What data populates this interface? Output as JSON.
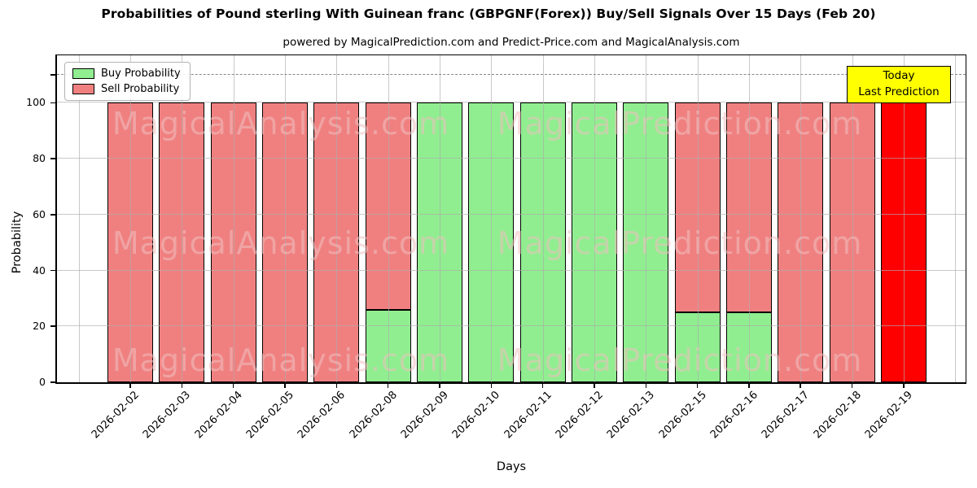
{
  "figure": {
    "title": "Probabilities of Pound sterling With Guinean franc (GBPGNF(Forex)) Buy/Sell Signals Over 15 Days (Feb 20)",
    "subtitle": "powered by MagicalPrediction.com and Predict-Price.com and MagicalAnalysis.com"
  },
  "legend": {
    "items": [
      {
        "label": "Buy Probability",
        "color": "#90ee90"
      },
      {
        "label": "Sell Probability",
        "color": "#f08080"
      }
    ]
  },
  "annotation_box": {
    "line1": "Today",
    "line2": "Last Prediction",
    "bg_color": "#ffff00",
    "border_color": "#000000"
  },
  "watermarks": {
    "left_text": "MagicalAnalysis.com",
    "right_text": "MagicalPrediction.com"
  },
  "axes": {
    "ylabel": "Probability",
    "xlabel": "Days",
    "ytick_labels": [
      "0",
      "20",
      "40",
      "60",
      "80",
      "100"
    ]
  },
  "chart_data": {
    "type": "bar",
    "stacked": true,
    "title": "Probabilities of Pound sterling With Guinean franc (GBPGNF(Forex)) Buy/Sell Signals Over 15 Days (Feb 20)",
    "xlabel": "Days",
    "ylabel": "Probability",
    "categories": [
      "2026-02-02",
      "2026-02-03",
      "2026-02-04",
      "2026-02-05",
      "2026-02-06",
      "2026-02-08",
      "2026-02-09",
      "2026-02-10",
      "2026-02-11",
      "2026-02-12",
      "2026-02-13",
      "2026-02-15",
      "2026-02-16",
      "2026-02-17",
      "2026-02-18",
      "2026-02-19"
    ],
    "series": [
      {
        "name": "Buy Probability",
        "color": "#90ee90",
        "values": [
          0,
          0,
          0,
          0,
          0,
          26,
          100,
          100,
          100,
          100,
          100,
          25,
          25,
          0,
          0,
          0
        ]
      },
      {
        "name": "Sell Probability",
        "color": "#f08080",
        "values": [
          100,
          100,
          100,
          100,
          100,
          74,
          0,
          0,
          0,
          0,
          0,
          75,
          75,
          100,
          100,
          100
        ]
      }
    ],
    "today_bar": {
      "category": "2026-02-19",
      "color": "#ff0000"
    },
    "dashed_line_y": 110,
    "ylim": [
      0,
      117
    ],
    "yticks": [
      0,
      20,
      40,
      60,
      80,
      100
    ],
    "grid": true,
    "legend_position": "upper left",
    "bar_edge_color": "#000000"
  }
}
